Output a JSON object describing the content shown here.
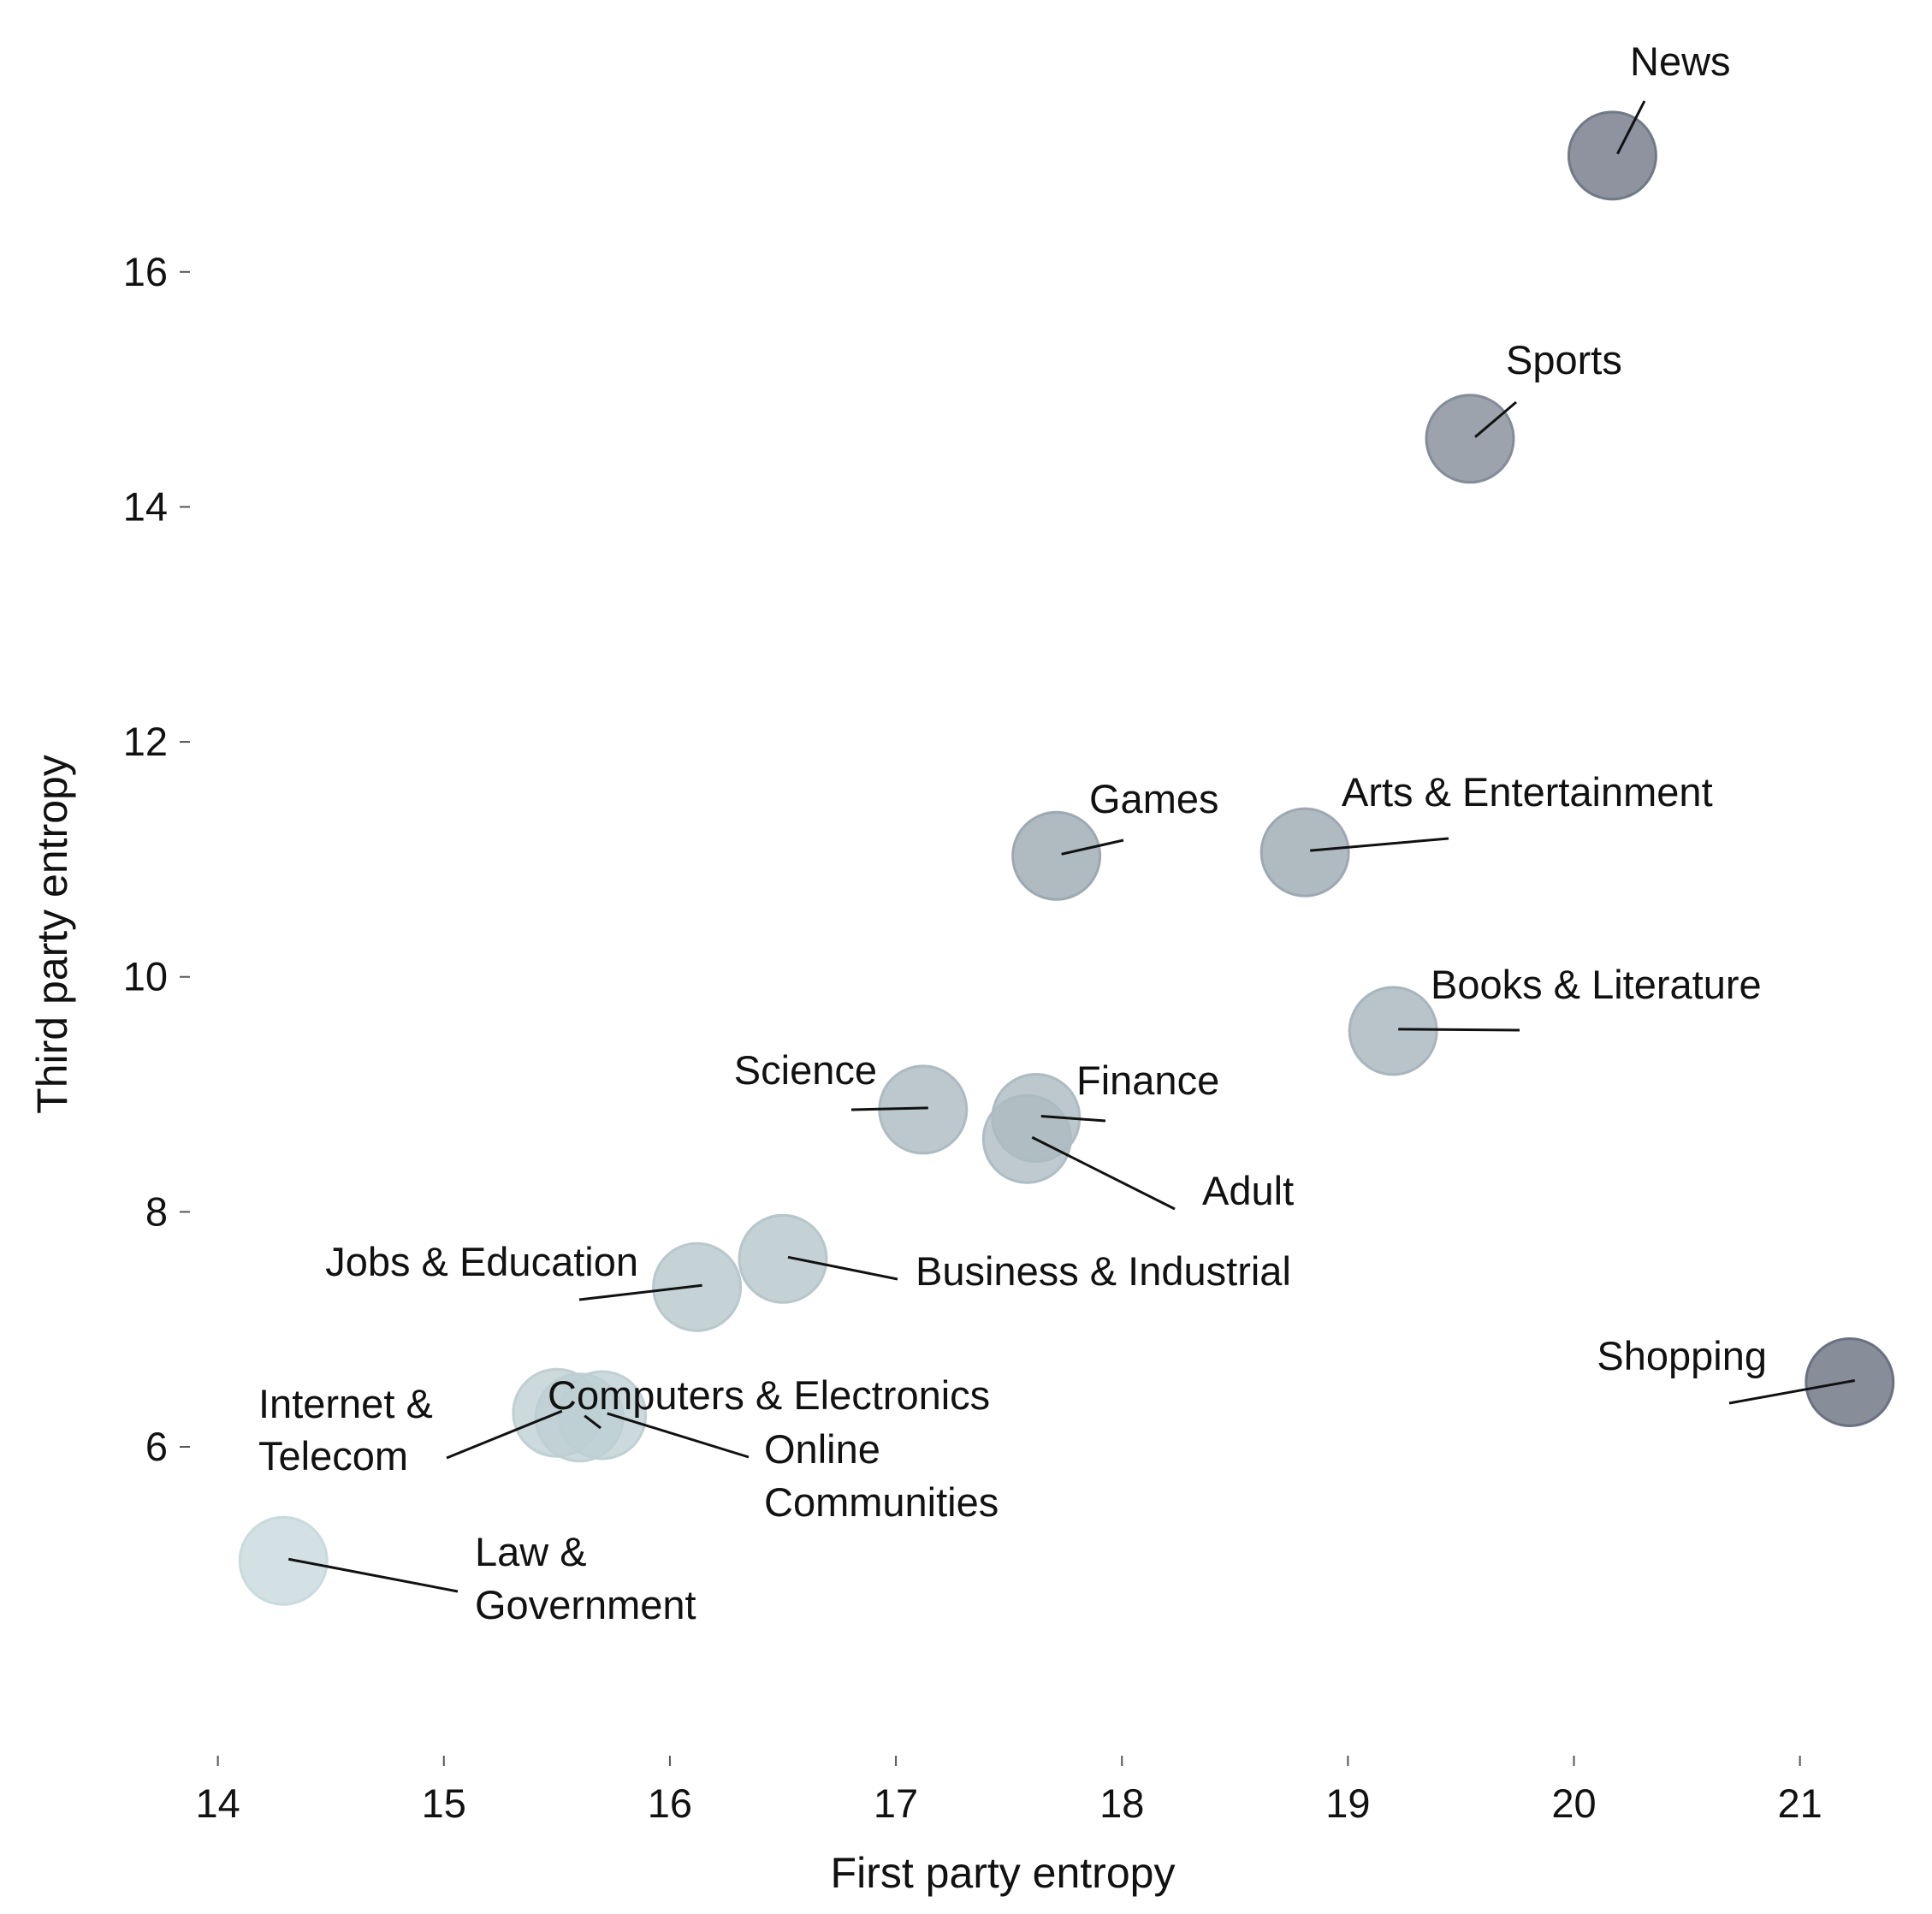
{
  "chart_data": {
    "type": "scatter",
    "title": "",
    "xlabel": "First party entropy",
    "ylabel": "Third party entropy",
    "xlim": [
      13.85,
      21.8
    ],
    "ylim": [
      3.75,
      17.95
    ],
    "xticks": [
      14,
      15,
      16,
      17,
      18,
      19,
      20,
      21
    ],
    "yticks": [
      6,
      8,
      10,
      12,
      14,
      16
    ],
    "grid": false,
    "legend": "none",
    "color_scale": {
      "low": "#c7d9dc",
      "high": "#6e7584",
      "encodes": "y"
    },
    "points": [
      {
        "label": "News",
        "x": 20.17,
        "y": 16.99
      },
      {
        "label": "Sports",
        "x": 19.54,
        "y": 14.58
      },
      {
        "label": "Games",
        "x": 17.71,
        "y": 11.03
      },
      {
        "label": "Arts & Entertainment",
        "x": 18.81,
        "y": 11.06
      },
      {
        "label": "Books & Literature",
        "x": 19.2,
        "y": 9.54
      },
      {
        "label": "Science",
        "x": 17.12,
        "y": 8.87
      },
      {
        "label": "Finance",
        "x": 17.62,
        "y": 8.8
      },
      {
        "label": "Adult",
        "x": 17.58,
        "y": 8.62
      },
      {
        "label": "Jobs & Education",
        "x": 16.12,
        "y": 7.36
      },
      {
        "label": "Business & Industrial",
        "x": 16.5,
        "y": 7.6
      },
      {
        "label": "Shopping",
        "x": 21.22,
        "y": 6.55
      },
      {
        "label": "Computers & Electronics",
        "x": 15.6,
        "y": 6.25
      },
      {
        "label": "Internet & Telecom",
        "x": 15.5,
        "y": 6.29
      },
      {
        "label": "Online Communities",
        "x": 15.7,
        "y": 6.27
      },
      {
        "label": "Law & Government",
        "x": 14.29,
        "y": 5.03
      }
    ]
  }
}
